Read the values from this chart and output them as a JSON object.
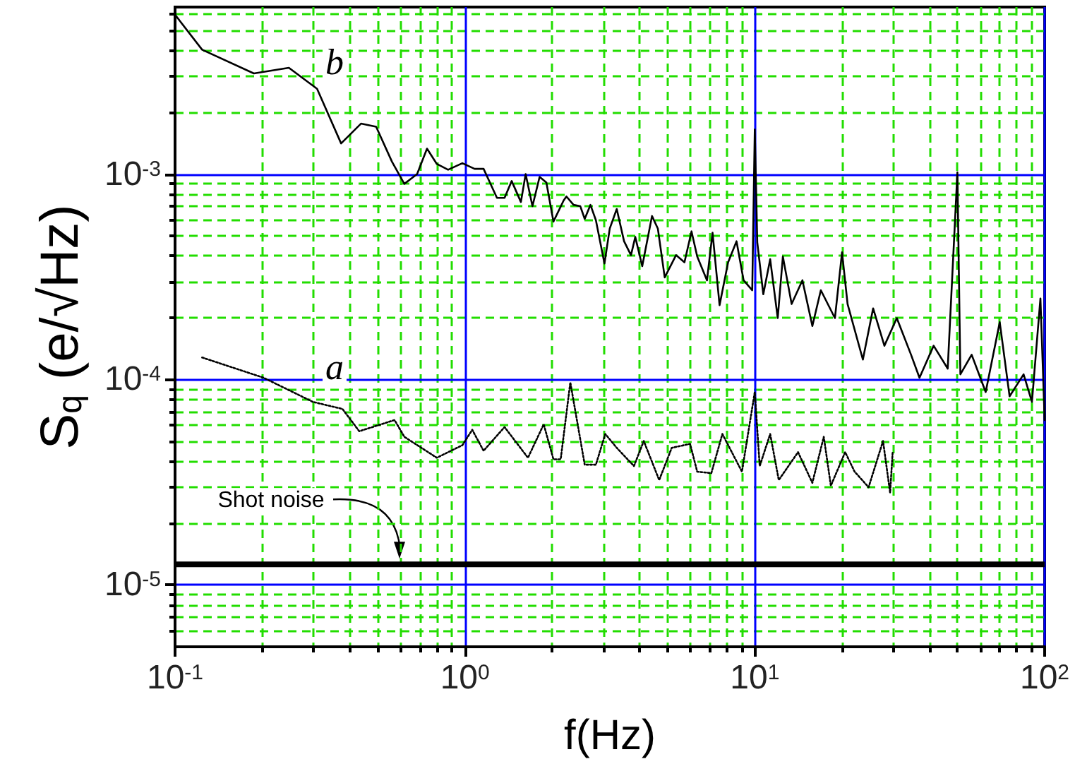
{
  "chart_data": {
    "type": "line",
    "xlabel": "f(Hz)",
    "ylabel": "S$_{q}$ (e/√Hz)",
    "log": "xy",
    "grid": true,
    "marker": "none",
    "xlim": [
      0.1,
      100
    ],
    "ylim": [
      5e-06,
      0.0065
    ],
    "xticks": [
      {
        "value": 0.1,
        "label": "10$^{-1}$"
      },
      {
        "value": 0.2,
        "label": null
      },
      {
        "value": 0.3,
        "label": null
      },
      {
        "value": 0.4,
        "label": null
      },
      {
        "value": 0.5,
        "label": null
      },
      {
        "value": 0.6,
        "label": null
      },
      {
        "value": 0.7,
        "label": null
      },
      {
        "value": 0.8,
        "label": null
      },
      {
        "value": 0.9,
        "label": null
      },
      {
        "value": 1,
        "label": "10$^{0}$"
      },
      {
        "value": 2,
        "label": null
      },
      {
        "value": 3,
        "label": null
      },
      {
        "value": 4,
        "label": null
      },
      {
        "value": 5,
        "label": null
      },
      {
        "value": 6,
        "label": null
      },
      {
        "value": 7,
        "label": null
      },
      {
        "value": 8,
        "label": null
      },
      {
        "value": 9,
        "label": null
      },
      {
        "value": 10,
        "label": "10$^{1}$"
      },
      {
        "value": 20,
        "label": null
      },
      {
        "value": 30,
        "label": null
      },
      {
        "value": 40,
        "label": null
      },
      {
        "value": 50,
        "label": null
      },
      {
        "value": 60,
        "label": null
      },
      {
        "value": 70,
        "label": null
      },
      {
        "value": 80,
        "label": null
      },
      {
        "value": 90,
        "label": null
      },
      {
        "value": 100,
        "label": "10$^{2}$"
      }
    ],
    "yticks": [
      {
        "value": 6e-06,
        "label": null
      },
      {
        "value": 7e-06,
        "label": null
      },
      {
        "value": 8e-06,
        "label": null
      },
      {
        "value": 9e-06,
        "label": null
      },
      {
        "value": 1e-05,
        "label": "10$^{-5}$"
      },
      {
        "value": 2e-05,
        "label": null
      },
      {
        "value": 3e-05,
        "label": null
      },
      {
        "value": 4e-05,
        "label": null
      },
      {
        "value": 5e-05,
        "label": null
      },
      {
        "value": 6e-05,
        "label": null
      },
      {
        "value": 7e-05,
        "label": null
      },
      {
        "value": 8e-05,
        "label": null
      },
      {
        "value": 9e-05,
        "label": null
      },
      {
        "value": 0.0001,
        "label": "10$^{-4}$"
      },
      {
        "value": 0.0002,
        "label": null
      },
      {
        "value": 0.0003,
        "label": null
      },
      {
        "value": 0.0004,
        "label": null
      },
      {
        "value": 0.0005,
        "label": null
      },
      {
        "value": 0.0006,
        "label": null
      },
      {
        "value": 0.0007,
        "label": null
      },
      {
        "value": 0.0008,
        "label": null
      },
      {
        "value": 0.0009,
        "label": null
      },
      {
        "value": 0.001,
        "label": "10$^{-3}$"
      },
      {
        "value": 0.002,
        "label": null
      },
      {
        "value": 0.003,
        "label": null
      },
      {
        "value": 0.004,
        "label": null
      },
      {
        "value": 0.005,
        "label": null
      },
      {
        "value": 0.006,
        "label": null
      }
    ],
    "series": [
      {
        "color": "#000000",
        "line_style": "solid",
        "x": [
          0.1,
          0.124,
          0.187,
          0.247,
          0.309,
          0.374,
          0.438,
          0.494,
          0.56,
          0.618,
          0.684,
          0.74,
          0.8,
          0.875,
          0.98,
          1.08,
          1.16,
          1.29,
          1.37,
          1.45,
          1.56,
          1.62,
          1.71,
          1.81,
          1.91,
          2.02,
          2.19,
          2.24,
          2.37,
          2.5,
          2.59,
          2.71,
          2.83,
          3.03,
          3.16,
          3.34,
          3.54,
          3.74,
          3.87,
          4.09,
          4.42,
          4.63,
          4.89,
          5.35,
          5.72,
          6.05,
          6.33,
          6.84,
          7.15,
          7.56,
          8.09,
          8.65,
          9.15,
          9.8,
          10,
          10.2,
          10.7,
          11.3,
          12,
          12.5,
          13.4,
          14.6,
          15.8,
          16.9,
          18.9,
          20,
          20.9,
          23.6,
          25.6,
          28,
          30.9,
          34.6,
          37,
          41.4,
          46.3,
          50,
          51.2,
          56,
          62.6,
          70,
          75.7,
          84.6,
          90.4,
          96.7,
          100
        ],
        "values": [
          0.00597,
          0.00403,
          0.00309,
          0.00329,
          0.0026,
          0.00141,
          0.00176,
          0.0017,
          0.00115,
          0.000896,
          0.001,
          0.00133,
          0.00112,
          0.00105,
          0.00113,
          0.00106,
          0.00106,
          0.000766,
          0.000766,
          0.000925,
          0.000731,
          0.001,
          0.000698,
          0.000969,
          0.00091,
          0.000587,
          0.000743,
          0.000778,
          0.000708,
          0.000698,
          0.000605,
          0.000708,
          0.000597,
          0.000367,
          0.000543,
          0.000676,
          0.000471,
          0.000403,
          0.000494,
          0.000356,
          0.000625,
          0.000543,
          0.000314,
          0.000403,
          0.000372,
          0.000526,
          0.000397,
          0.000304,
          0.000518,
          0.00023,
          0.000372,
          0.000471,
          0.000304,
          0.000272,
          0.00165,
          0.000465,
          0.00026,
          0.000385,
          0.000199,
          0.000397,
          0.000233,
          0.000304,
          0.000182,
          0.000272,
          0.000199,
          0.000416,
          0.000233,
          0.000125,
          0.000222,
          0.000146,
          0.000199,
          0.000132,
          0.000102,
          0.000146,
          0.000113,
          0.00102,
          0.000106,
          0.000132,
          8.69e-05,
          0.00019,
          8.28e-05,
          0.000106,
          7.78e-05,
          0.000248,
          6.35e-05
        ]
      },
      {
        "color": "#000000",
        "line_style": "dotted",
        "x": [
          0.124,
          0.202,
          0.299,
          0.378,
          0.432,
          0.572,
          0.618,
          0.8,
          0.98,
          1.06,
          1.16,
          1.37,
          1.65,
          1.87,
          2.02,
          2.14,
          2.31,
          2.59,
          2.83,
          3.05,
          3.34,
          3.83,
          4.14,
          4.68,
          5.17,
          5.98,
          6.33,
          7.08,
          7.73,
          9.03,
          10,
          10.4,
          11.3,
          12.1,
          14.1,
          15.8,
          17.3,
          18.3,
          20.5,
          22.1,
          24.7,
          27.7,
          29.3,
          29.9
        ],
        "values": [
          0.000128,
          0.000102,
          7.78e-05,
          7.19e-05,
          5.6e-05,
          6.35e-05,
          5.26e-05,
          4.16e-05,
          4.79e-05,
          5.69e-05,
          4.5e-05,
          5.87e-05,
          4.16e-05,
          6.05e-05,
          4.09e-05,
          4.09e-05,
          9.68e-05,
          3.85e-05,
          3.85e-05,
          5.43e-05,
          4.65e-05,
          3.79e-05,
          5.02e-05,
          3.24e-05,
          4.65e-05,
          4.86e-05,
          3.56e-05,
          3.5e-05,
          5.43e-05,
          3.56e-05,
          8.69e-05,
          3.79e-05,
          5.43e-05,
          3.24e-05,
          4.43e-05,
          3.14e-05,
          5.26e-05,
          3.04e-05,
          4.43e-05,
          3.56e-05,
          2.99e-05,
          5.02e-05,
          2.81e-05,
          4.43e-05
        ]
      }
    ],
    "ref_lines": [
      {
        "axis": "y",
        "value": 1.26e-05,
        "label": "Shot noise",
        "color": "#000000"
      }
    ],
    "annotations": [
      "b",
      "a"
    ]
  }
}
